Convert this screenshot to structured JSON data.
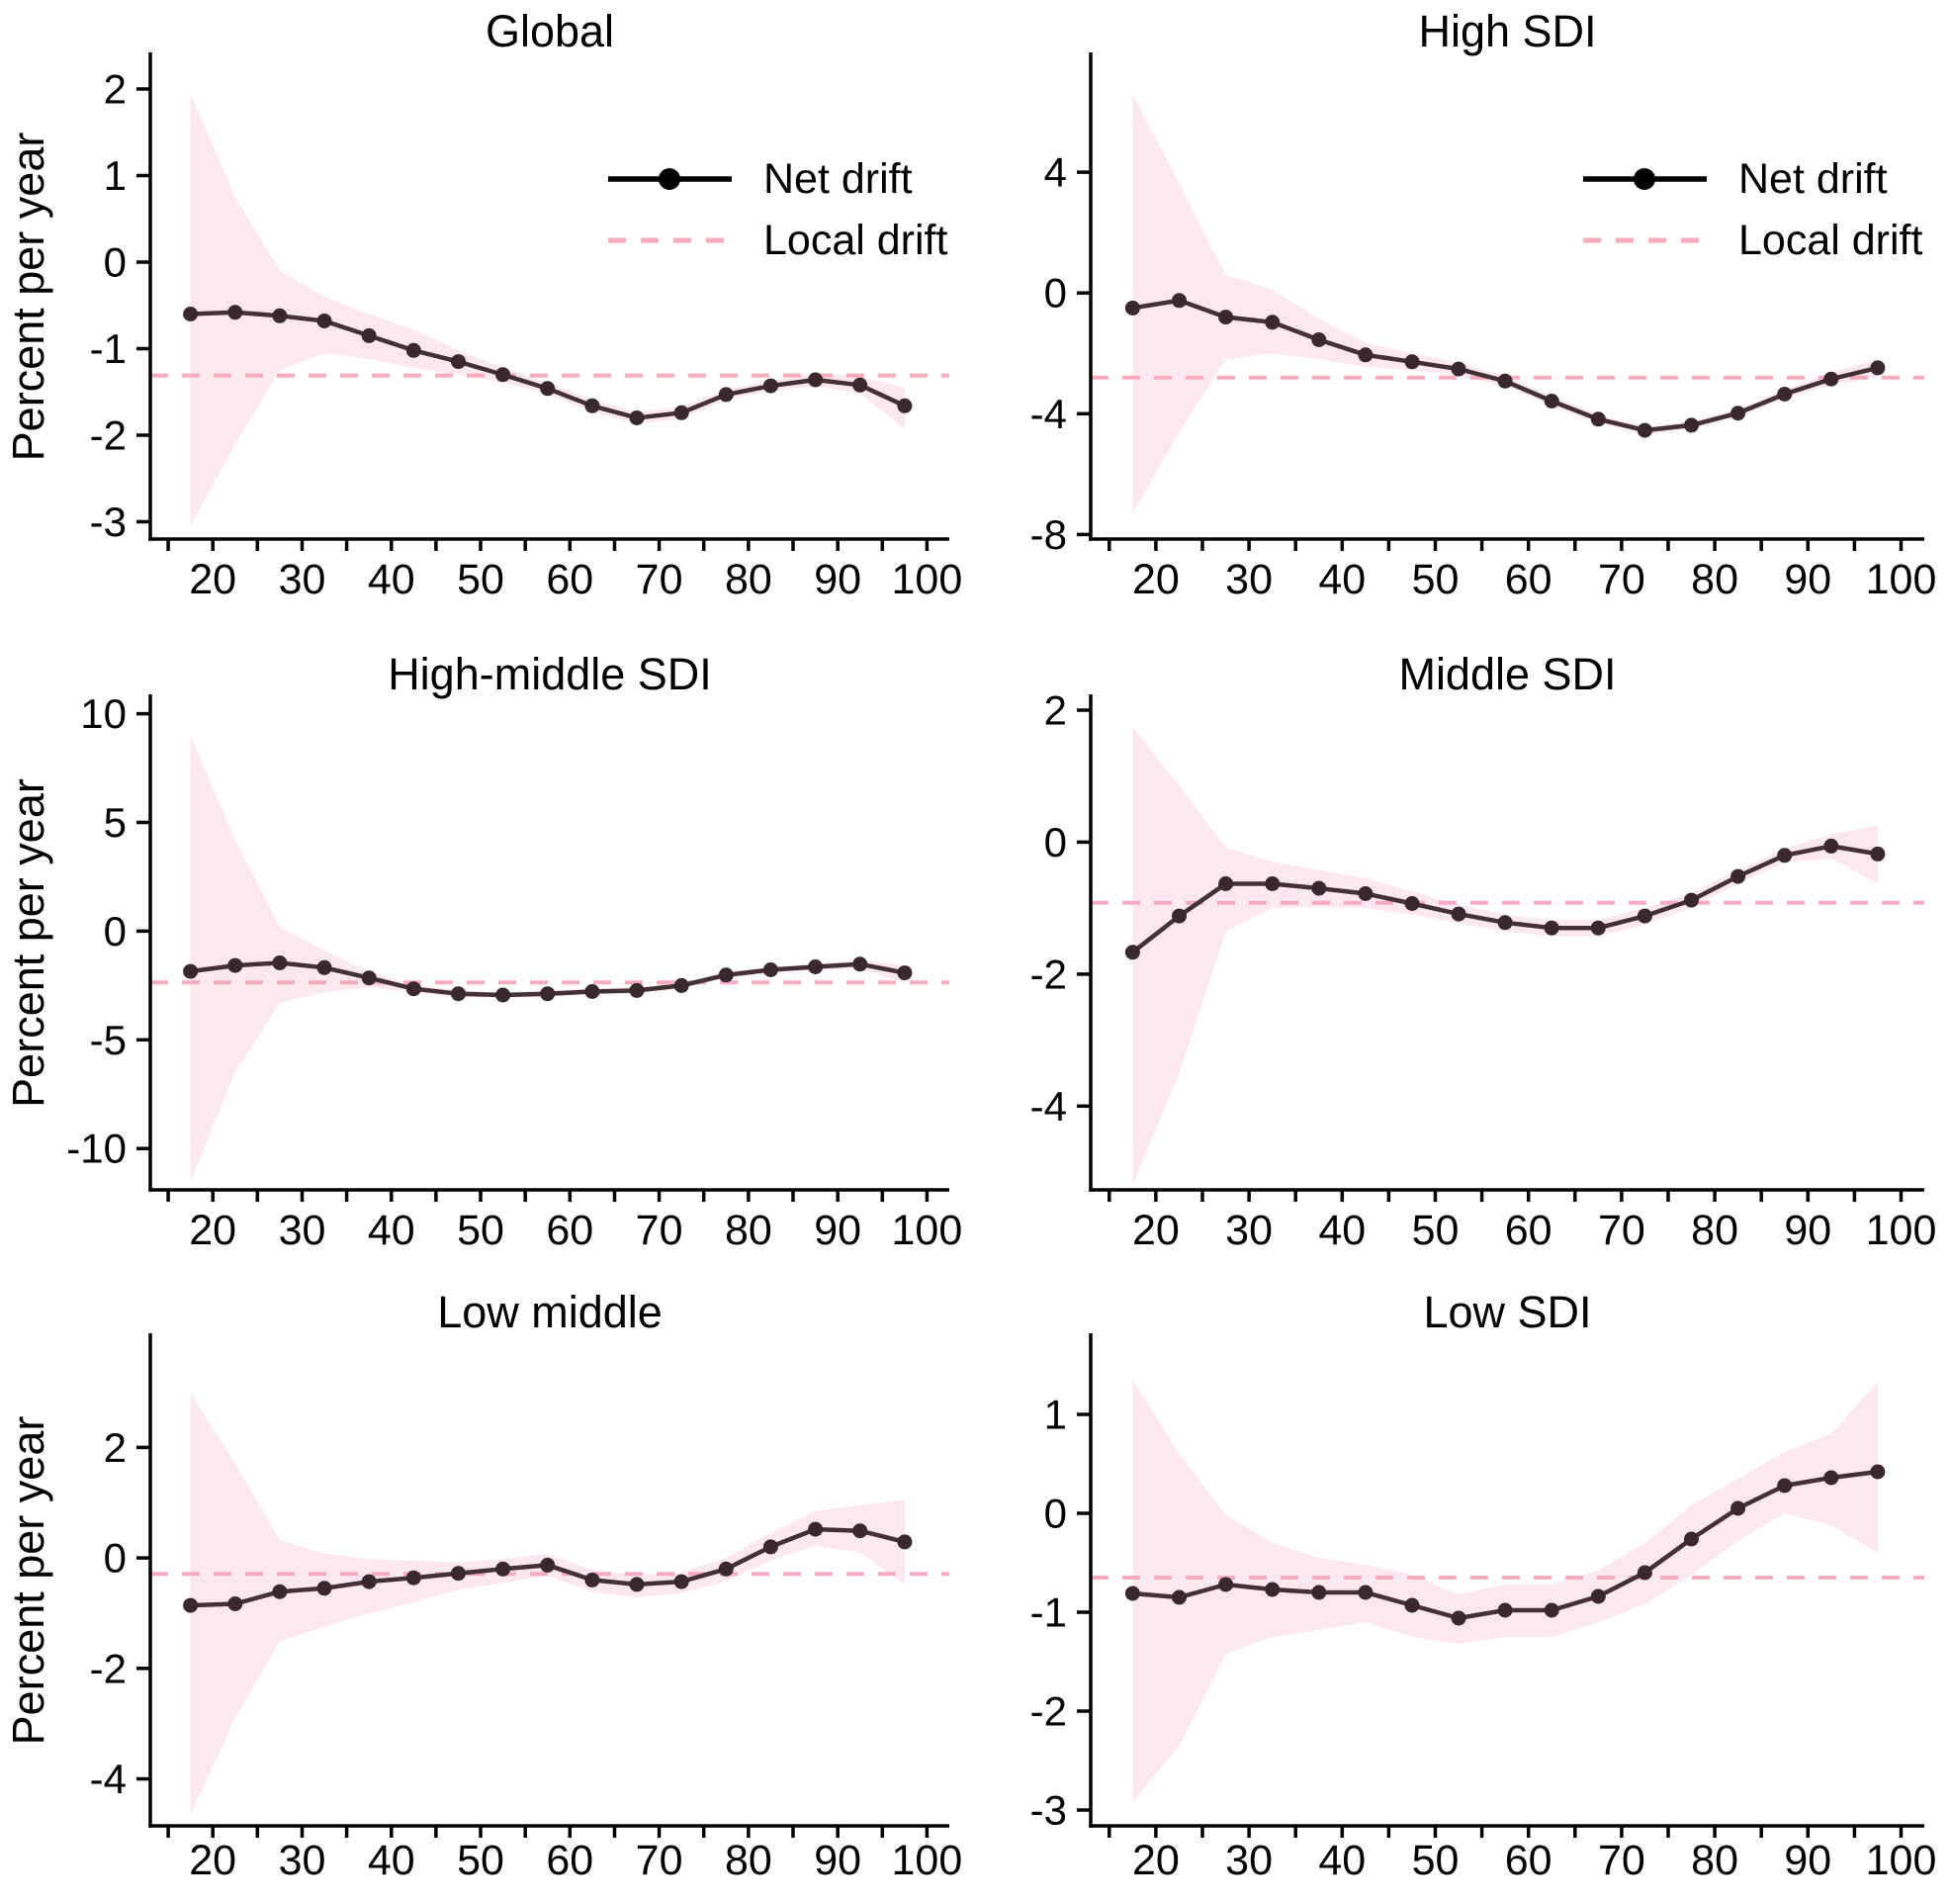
{
  "figure_title": "",
  "ylabel": "Percent per year",
  "legend": {
    "net_drift": "Net drift",
    "local_drift": "Local drift"
  },
  "colors": {
    "net_drift_line": "#433138",
    "net_drift_point": "#3a282f",
    "band_fill": "#fce8ee",
    "local_drift_line": "#f8abbf",
    "legend_net_sample": "#000000",
    "axis": "#000000",
    "text": "#000000",
    "background": "#ffffff"
  },
  "chart_data": [
    {
      "type": "line",
      "title": "Global",
      "xlabel": "",
      "ylabel": "Percent per year",
      "show_ylabel": true,
      "show_legend": true,
      "x": [
        17.5,
        22.5,
        27.5,
        32.5,
        37.5,
        42.5,
        47.5,
        52.5,
        57.5,
        62.5,
        67.5,
        72.5,
        77.5,
        82.5,
        87.5,
        92.5,
        97.5
      ],
      "series": [
        {
          "name": "Net drift",
          "values": [
            -0.6,
            -0.58,
            -0.62,
            -0.68,
            -0.85,
            -1.02,
            -1.15,
            -1.3,
            -1.46,
            -1.66,
            -1.8,
            -1.74,
            -1.53,
            -1.43,
            -1.36,
            -1.42,
            -1.66
          ]
        }
      ],
      "local_drift": -1.31,
      "band_upper": [
        1.95,
        0.75,
        -0.1,
        -0.4,
        -0.6,
        -0.78,
        -1.02,
        -1.22,
        -1.39,
        -1.59,
        -1.73,
        -1.67,
        -1.47,
        -1.37,
        -1.28,
        -1.32,
        -1.45
      ],
      "band_lower": [
        -3.05,
        -2.1,
        -1.25,
        -1.05,
        -1.12,
        -1.22,
        -1.3,
        -1.39,
        -1.53,
        -1.73,
        -1.87,
        -1.81,
        -1.59,
        -1.49,
        -1.43,
        -1.52,
        -1.92
      ],
      "ylim": [
        -3.2,
        2.4
      ],
      "yticks": [
        2,
        1,
        0,
        -1,
        -2,
        -3
      ],
      "xlim": [
        13,
        102.5
      ],
      "xticks": [
        20,
        30,
        40,
        50,
        60,
        70,
        80,
        90,
        100
      ],
      "xtick_minor_step": 5,
      "grid": false,
      "legend_position": "top-right"
    },
    {
      "type": "line",
      "title": "High SDI",
      "xlabel": "",
      "ylabel": "",
      "show_ylabel": false,
      "show_legend": true,
      "x": [
        17.5,
        22.5,
        27.5,
        32.5,
        37.5,
        42.5,
        47.5,
        52.5,
        57.5,
        62.5,
        67.5,
        72.5,
        77.5,
        82.5,
        87.5,
        92.5,
        97.5
      ],
      "series": [
        {
          "name": "Net drift",
          "values": [
            -0.5,
            -0.25,
            -0.8,
            -0.97,
            -1.55,
            -2.05,
            -2.28,
            -2.52,
            -2.92,
            -3.58,
            -4.18,
            -4.55,
            -4.38,
            -3.98,
            -3.35,
            -2.85,
            -2.48
          ]
        }
      ],
      "local_drift": -2.8,
      "band_upper": [
        6.6,
        3.6,
        0.6,
        0.1,
        -0.85,
        -1.65,
        -2.0,
        -2.3,
        -2.75,
        -3.42,
        -4.03,
        -4.42,
        -4.25,
        -3.85,
        -3.2,
        -2.63,
        -2.18
      ],
      "band_lower": [
        -7.3,
        -4.6,
        -2.2,
        -2.0,
        -2.2,
        -2.45,
        -2.56,
        -2.74,
        -3.09,
        -3.74,
        -4.33,
        -4.68,
        -4.51,
        -4.11,
        -3.5,
        -3.07,
        -2.78
      ],
      "ylim": [
        -8.15,
        7.9
      ],
      "yticks": [
        4,
        0,
        -4,
        -8
      ],
      "xlim": [
        13,
        102.5
      ],
      "xticks": [
        20,
        30,
        40,
        50,
        60,
        70,
        80,
        90,
        100
      ],
      "xtick_minor_step": 5,
      "grid": false,
      "legend_position": "top-right"
    },
    {
      "type": "line",
      "title": "High-middle SDI",
      "xlabel": "",
      "ylabel": "Percent per year",
      "show_ylabel": true,
      "show_legend": false,
      "x": [
        17.5,
        22.5,
        27.5,
        32.5,
        37.5,
        42.5,
        47.5,
        52.5,
        57.5,
        62.5,
        67.5,
        72.5,
        77.5,
        82.5,
        87.5,
        92.5,
        97.5
      ],
      "series": [
        {
          "name": "Net drift",
          "values": [
            -1.85,
            -1.58,
            -1.46,
            -1.68,
            -2.15,
            -2.65,
            -2.88,
            -2.94,
            -2.88,
            -2.78,
            -2.73,
            -2.5,
            -2.02,
            -1.78,
            -1.64,
            -1.52,
            -1.92
          ]
        }
      ],
      "local_drift": -2.36,
      "band_upper": [
        9.0,
        4.2,
        0.2,
        -0.9,
        -1.85,
        -2.48,
        -2.72,
        -2.8,
        -2.74,
        -2.64,
        -2.59,
        -2.36,
        -1.88,
        -1.64,
        -1.5,
        -1.35,
        -1.55
      ],
      "band_lower": [
        -11.5,
        -6.5,
        -3.3,
        -2.8,
        -2.6,
        -2.82,
        -3.05,
        -3.1,
        -3.03,
        -2.93,
        -2.88,
        -2.66,
        -2.16,
        -1.92,
        -1.8,
        -1.72,
        -2.38
      ],
      "ylim": [
        -11.9,
        10.8
      ],
      "yticks": [
        10,
        5,
        0,
        -5,
        -10
      ],
      "xlim": [
        13,
        102.5
      ],
      "xticks": [
        20,
        30,
        40,
        50,
        60,
        70,
        80,
        90,
        100
      ],
      "xtick_minor_step": 5,
      "grid": false,
      "legend_position": "none"
    },
    {
      "type": "line",
      "title": "Middle SDI",
      "xlabel": "",
      "ylabel": "",
      "show_ylabel": false,
      "show_legend": false,
      "x": [
        17.5,
        22.5,
        27.5,
        32.5,
        37.5,
        42.5,
        47.5,
        52.5,
        57.5,
        62.5,
        67.5,
        72.5,
        77.5,
        82.5,
        87.5,
        92.5,
        97.5
      ],
      "series": [
        {
          "name": "Net drift",
          "values": [
            -1.67,
            -1.12,
            -0.63,
            -0.63,
            -0.7,
            -0.78,
            -0.93,
            -1.09,
            -1.22,
            -1.3,
            -1.3,
            -1.12,
            -0.88,
            -0.52,
            -0.2,
            -0.06,
            -0.18
          ]
        }
      ],
      "local_drift": -0.92,
      "band_upper": [
        1.75,
        0.85,
        -0.08,
        -0.3,
        -0.42,
        -0.55,
        -0.75,
        -0.95,
        -1.1,
        -1.18,
        -1.18,
        -1.0,
        -0.77,
        -0.42,
        -0.1,
        0.12,
        0.25
      ],
      "band_lower": [
        -5.2,
        -3.5,
        -1.35,
        -1.0,
        -0.98,
        -1.0,
        -1.1,
        -1.23,
        -1.35,
        -1.43,
        -1.43,
        -1.25,
        -1.0,
        -0.63,
        -0.31,
        -0.25,
        -0.62
      ],
      "ylim": [
        -5.27,
        2.21
      ],
      "yticks": [
        2,
        0,
        -2,
        -4
      ],
      "xlim": [
        13,
        102.5
      ],
      "xticks": [
        20,
        30,
        40,
        50,
        60,
        70,
        80,
        90,
        100
      ],
      "xtick_minor_step": 5,
      "grid": false,
      "legend_position": "none"
    },
    {
      "type": "line",
      "title": "Low middle",
      "xlabel": "",
      "ylabel": "Percent per year",
      "show_ylabel": true,
      "show_legend": false,
      "x": [
        17.5,
        22.5,
        27.5,
        32.5,
        37.5,
        42.5,
        47.5,
        52.5,
        57.5,
        62.5,
        67.5,
        72.5,
        77.5,
        82.5,
        87.5,
        92.5,
        97.5
      ],
      "series": [
        {
          "name": "Net drift",
          "values": [
            -0.86,
            -0.83,
            -0.61,
            -0.55,
            -0.43,
            -0.36,
            -0.28,
            -0.2,
            -0.13,
            -0.4,
            -0.48,
            -0.43,
            -0.2,
            0.2,
            0.52,
            0.49,
            0.29
          ]
        }
      ],
      "local_drift": -0.29,
      "band_upper": [
        3.0,
        1.7,
        0.32,
        0.08,
        -0.02,
        -0.05,
        -0.08,
        -0.02,
        0.07,
        -0.22,
        -0.3,
        -0.26,
        0.0,
        0.45,
        0.85,
        0.95,
        1.05
      ],
      "band_lower": [
        -4.65,
        -2.9,
        -1.5,
        -1.25,
        -1.0,
        -0.8,
        -0.58,
        -0.45,
        -0.32,
        -0.62,
        -0.72,
        -0.64,
        -0.42,
        -0.05,
        0.22,
        0.1,
        -0.48
      ],
      "ylim": [
        -4.85,
        4.03
      ],
      "yticks": [
        2,
        0,
        -2,
        -4
      ],
      "xlim": [
        13,
        102.5
      ],
      "xticks": [
        20,
        30,
        40,
        50,
        60,
        70,
        80,
        90,
        100
      ],
      "xtick_minor_step": 5,
      "grid": false,
      "legend_position": "none"
    },
    {
      "type": "line",
      "title": "Low SDI",
      "xlabel": "",
      "ylabel": "",
      "show_ylabel": false,
      "show_legend": false,
      "x": [
        17.5,
        22.5,
        27.5,
        32.5,
        37.5,
        42.5,
        47.5,
        52.5,
        57.5,
        62.5,
        67.5,
        72.5,
        77.5,
        82.5,
        87.5,
        92.5,
        97.5
      ],
      "series": [
        {
          "name": "Net drift",
          "values": [
            -0.81,
            -0.85,
            -0.72,
            -0.77,
            -0.8,
            -0.8,
            -0.93,
            -1.06,
            -0.98,
            -0.98,
            -0.84,
            -0.6,
            -0.26,
            0.05,
            0.28,
            0.36,
            0.42
          ]
        }
      ],
      "local_drift": -0.65,
      "band_upper": [
        1.35,
        0.6,
        -0.02,
        -0.3,
        -0.45,
        -0.52,
        -0.62,
        -0.82,
        -0.72,
        -0.72,
        -0.58,
        -0.3,
        0.08,
        0.35,
        0.62,
        0.8,
        1.33
      ],
      "band_lower": [
        -2.92,
        -2.35,
        -1.42,
        -1.25,
        -1.18,
        -1.1,
        -1.25,
        -1.32,
        -1.25,
        -1.25,
        -1.1,
        -0.92,
        -0.62,
        -0.28,
        0.0,
        -0.12,
        -0.4
      ],
      "ylim": [
        -3.16,
        1.8
      ],
      "yticks": [
        1,
        0,
        -1,
        -2,
        -3
      ],
      "xlim": [
        13,
        102.5
      ],
      "xticks": [
        20,
        30,
        40,
        50,
        60,
        70,
        80,
        90,
        100
      ],
      "xtick_minor_step": 5,
      "grid": false,
      "legend_position": "none"
    }
  ]
}
